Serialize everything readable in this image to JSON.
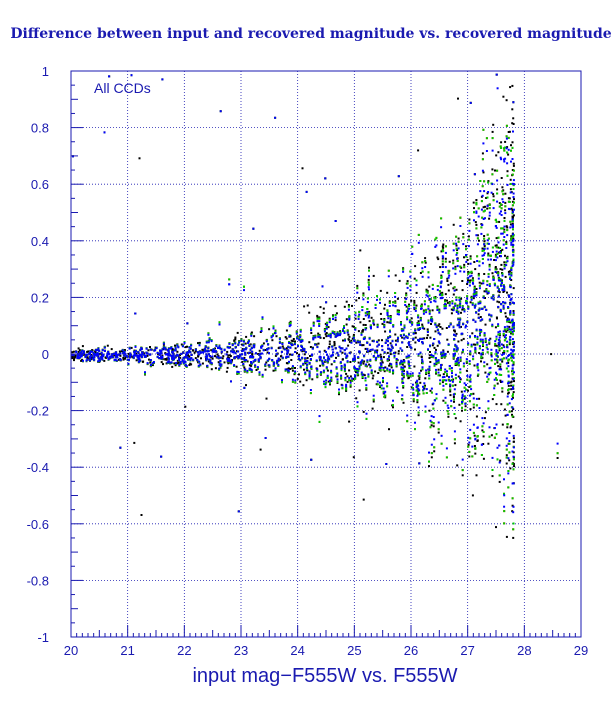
{
  "chart_data": {
    "type": "scatter",
    "title": "Difference between input and recovered magnitude vs. recovered magnitude",
    "xlabel": "input mag−F555W vs. F555W",
    "ylabel": "",
    "annotation": "All CCDs",
    "xlim": [
      20,
      29
    ],
    "ylim": [
      -1,
      1
    ],
    "x_ticks": [
      "20",
      "21",
      "22",
      "23",
      "24",
      "25",
      "26",
      "27",
      "28",
      "29"
    ],
    "y_ticks": [
      "1",
      "0.8",
      "0.6",
      "0.4",
      "0.2",
      "0",
      "-0.2",
      "-0.4",
      "-0.6",
      "-0.8",
      "-1"
    ],
    "grid": "dashed",
    "series": [
      {
        "color": "#000000",
        "spread": 0.16
      },
      {
        "color": "#ff0000",
        "spread": 0.14
      },
      {
        "color": "#00cc00",
        "spread": 0.14
      },
      {
        "color": "#0000ff",
        "spread": 0.1
      }
    ],
    "trend": {
      "x": [
        20.0,
        21.0,
        22.0,
        23.0,
        24.0,
        25.0,
        26.0,
        26.5,
        27.0,
        27.3,
        27.6,
        27.8
      ],
      "sigma": [
        0.01,
        0.013,
        0.02,
        0.03,
        0.05,
        0.08,
        0.12,
        0.15,
        0.2,
        0.25,
        0.3,
        0.32
      ],
      "bias": [
        0.0,
        0.0,
        0.0,
        0.005,
        0.01,
        0.02,
        0.04,
        0.06,
        0.1,
        0.15,
        0.2,
        0.2
      ]
    },
    "magnitude_cutoff": 27.8,
    "colors": {
      "axis": "#1a1ab0",
      "grid": "#1a1ab0"
    }
  }
}
